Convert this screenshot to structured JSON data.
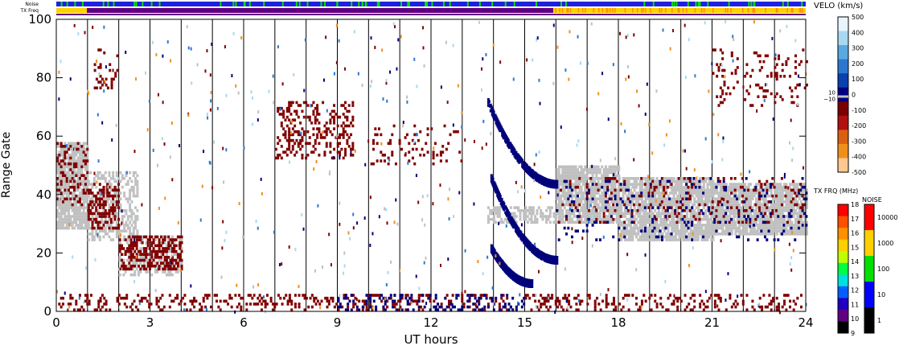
{
  "chart_data": {
    "type": "scatter",
    "xlabel": "UT hours",
    "ylabel": "Range Gate",
    "xlim": [
      0,
      24
    ],
    "ylim": [
      0,
      100
    ],
    "x_ticks": [
      0,
      3,
      6,
      9,
      12,
      15,
      18,
      21,
      24
    ],
    "y_ticks": [
      0,
      20,
      40,
      60,
      80,
      100
    ],
    "hour_gridlines": [
      1,
      2,
      3,
      4,
      5,
      6,
      7,
      8,
      9,
      10,
      11,
      12,
      13,
      14,
      15,
      16,
      17,
      18,
      19,
      20,
      21,
      22,
      23
    ],
    "noise_label": "Noise",
    "txfreq_label": "TX Freq",
    "velocity_colorbar": {
      "title": "VELO (km/s)",
      "ticks": [
        500,
        400,
        300,
        200,
        100,
        0,
        -100,
        -200,
        -300,
        -400,
        -500
      ],
      "ground_scatter_ticks": [
        "10",
        "−10"
      ],
      "colors_high_to_low": [
        "#e8f4ff",
        "#a8d8f0",
        "#5aa8e0",
        "#2c78d0",
        "#0a40b0",
        "#000080",
        "#7a0000",
        "#b01010",
        "#d86010",
        "#f0901c",
        "#ffc890"
      ]
    },
    "txfreq_colorbar": {
      "title": "TX FRQ (MHz)",
      "ticks": [
        18,
        17,
        16,
        15,
        14,
        13,
        12,
        11,
        10,
        9
      ],
      "colors_high_to_low": [
        "#ff0000",
        "#ff5000",
        "#ff9000",
        "#ffd000",
        "#c0ff00",
        "#00ff40",
        "#00e0e0",
        "#0060ff",
        "#2000c0",
        "#600080",
        "#000000"
      ]
    },
    "noise_colorbar": {
      "title": "NOISE",
      "ticks": [
        "10000",
        "1000",
        "100",
        "10",
        "1"
      ],
      "colors_high_to_low": [
        "#ff0000",
        "#ffd000",
        "#00e000",
        "#0000ff",
        "#000000"
      ]
    },
    "series": [
      {
        "name": "ground scatter",
        "color": "#c0c0c0"
      },
      {
        "name": "negative velocity",
        "color": "#800000"
      },
      {
        "name": "positive velocity",
        "color": "#00007a"
      }
    ],
    "regions": [
      {
        "series": "ground scatter",
        "x": [
          0.0,
          1.0
        ],
        "y": [
          28,
          58
        ],
        "density": 0.85
      },
      {
        "series": "ground scatter",
        "x": [
          1.0,
          2.6
        ],
        "y": [
          24,
          48
        ],
        "density": 0.45
      },
      {
        "series": "ground scatter",
        "x": [
          2.0,
          4.0
        ],
        "y": [
          12,
          26
        ],
        "density": 0.4
      },
      {
        "series": "ground scatter",
        "x": [
          13.8,
          16.0
        ],
        "y": [
          30,
          36
        ],
        "density": 0.55
      },
      {
        "series": "ground scatter",
        "x": [
          16.0,
          18.0
        ],
        "y": [
          30,
          50
        ],
        "density": 0.85
      },
      {
        "series": "ground scatter",
        "x": [
          18.0,
          21.0
        ],
        "y": [
          24,
          46
        ],
        "density": 0.85
      },
      {
        "series": "ground scatter",
        "x": [
          21.0,
          24.0
        ],
        "y": [
          26,
          44
        ],
        "density": 0.85
      },
      {
        "series": "negative velocity",
        "x": [
          0.0,
          1.0
        ],
        "y": [
          36,
          58
        ],
        "density": 0.25
      },
      {
        "series": "negative velocity",
        "x": [
          1.0,
          2.0
        ],
        "y": [
          28,
          44
        ],
        "density": 0.45
      },
      {
        "series": "negative velocity",
        "x": [
          2.0,
          4.0
        ],
        "y": [
          14,
          26
        ],
        "density": 0.5
      },
      {
        "series": "negative velocity",
        "x": [
          1.2,
          2.0
        ],
        "y": [
          76,
          90
        ],
        "density": 0.2
      },
      {
        "series": "negative velocity",
        "x": [
          7.0,
          9.5
        ],
        "y": [
          52,
          72
        ],
        "density": 0.25
      },
      {
        "series": "negative velocity",
        "x": [
          10.0,
          13.0
        ],
        "y": [
          50,
          64
        ],
        "density": 0.12
      },
      {
        "series": "negative velocity",
        "x": [
          16.0,
          24.0
        ],
        "y": [
          30,
          46
        ],
        "density": 0.1
      },
      {
        "series": "negative velocity",
        "x": [
          21.0,
          24.0
        ],
        "y": [
          70,
          90
        ],
        "density": 0.12
      },
      {
        "series": "negative velocity",
        "x": [
          0.0,
          24.0
        ],
        "y": [
          0,
          6
        ],
        "density": 0.22
      },
      {
        "series": "positive velocity",
        "x": [
          9.0,
          15.0
        ],
        "y": [
          0,
          6
        ],
        "density": 0.2
      },
      {
        "series": "positive velocity",
        "x": [
          16.0,
          24.0
        ],
        "y": [
          24,
          46
        ],
        "density": 0.07
      }
    ],
    "arcs": [
      {
        "series": "positive velocity",
        "x": [
          13.8,
          16.0
        ],
        "y_start": 72,
        "y_end": 44
      },
      {
        "series": "positive velocity",
        "x": [
          13.9,
          16.0
        ],
        "y_start": 46,
        "y_end": 18
      },
      {
        "series": "positive velocity",
        "x": [
          13.9,
          15.2
        ],
        "y_start": 22,
        "y_end": 10
      }
    ]
  }
}
